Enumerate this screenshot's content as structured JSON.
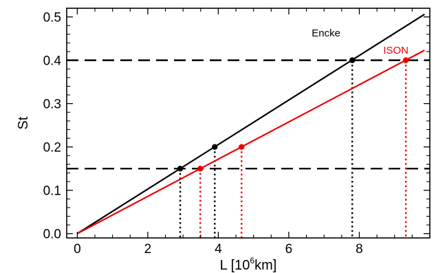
{
  "chart_data": {
    "type": "line",
    "xlabel": {
      "prefix": "L [10",
      "sup": "6",
      "suffix": "km]"
    },
    "ylabel": "St",
    "xlim": [
      -0.3,
      10.0
    ],
    "ylim": [
      -0.01,
      0.52
    ],
    "x_ticks": [
      0,
      2,
      4,
      6,
      8
    ],
    "x_tick_labels": [
      "0",
      "2",
      "4",
      "6",
      "8"
    ],
    "y_ticks": [
      0.0,
      0.1,
      0.2,
      0.3,
      0.4,
      0.5
    ],
    "y_tick_labels": [
      "0.0",
      "0.1",
      "0.2",
      "0.3",
      "0.4",
      "0.5"
    ],
    "x_minor_step": 0.5,
    "y_minor_step": 0.02,
    "grid": false,
    "colors": {
      "Encke": "#000000",
      "ISON": "#ee0000"
    },
    "series": [
      {
        "name": "Encke",
        "color": "#000000",
        "line": {
          "x": [
            0,
            9.85
          ],
          "y": [
            0,
            0.506
          ]
        },
        "points": {
          "x": [
            2.92,
            3.9,
            7.8
          ],
          "y": [
            0.15,
            0.2,
            0.4
          ]
        }
      },
      {
        "name": "ISON",
        "color": "#ee0000",
        "line": {
          "x": [
            0,
            9.85
          ],
          "y": [
            0,
            0.423
          ]
        },
        "points": {
          "x": [
            3.49,
            4.66,
            9.32
          ],
          "y": [
            0.15,
            0.2,
            0.4
          ]
        }
      }
    ],
    "hlines": [
      {
        "y": 0.15,
        "style": "dashed",
        "color": "#000000"
      },
      {
        "y": 0.4,
        "style": "dashed",
        "color": "#000000"
      }
    ],
    "vlines": [
      {
        "x": 2.92,
        "y_top": 0.15,
        "color": "#000000"
      },
      {
        "x": 3.9,
        "y_top": 0.2,
        "color": "#000000"
      },
      {
        "x": 7.8,
        "y_top": 0.4,
        "color": "#000000"
      },
      {
        "x": 3.49,
        "y_top": 0.15,
        "color": "#ee0000"
      },
      {
        "x": 4.66,
        "y_top": 0.2,
        "color": "#ee0000"
      },
      {
        "x": 9.32,
        "y_top": 0.4,
        "color": "#ee0000"
      }
    ],
    "annotations": [
      {
        "text": "Encke",
        "x": 6.65,
        "y": 0.455,
        "color": "#000000"
      },
      {
        "text": "ISON",
        "x": 8.68,
        "y": 0.415,
        "color": "#ee0000"
      }
    ]
  }
}
